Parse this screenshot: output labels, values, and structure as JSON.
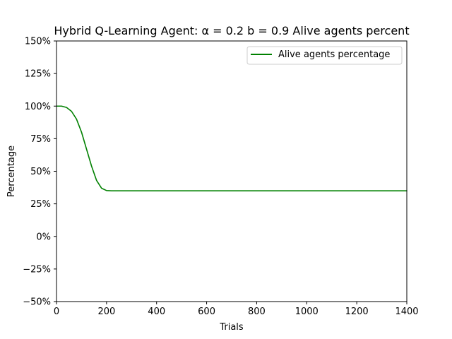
{
  "chart_data": {
    "type": "line",
    "title": "Hybrid Q-Learning Agent: α = 0.2 b = 0.9 Alive agents percent",
    "xlabel": "Trials",
    "ylabel": "Percentage",
    "xlim": [
      0,
      1400
    ],
    "ylim": [
      -50,
      150
    ],
    "x_ticks": [
      0,
      200,
      400,
      600,
      800,
      1000,
      1200,
      1400
    ],
    "x_tick_labels": [
      "0",
      "200",
      "400",
      "600",
      "800",
      "1000",
      "1200",
      "1400"
    ],
    "y_ticks": [
      -50,
      -25,
      0,
      25,
      50,
      75,
      100,
      125,
      150
    ],
    "y_tick_labels": [
      "−50%",
      "−25%",
      "0%",
      "25%",
      "50%",
      "75%",
      "100%",
      "125%",
      "150%"
    ],
    "grid": false,
    "legend_position": "top-right",
    "series": [
      {
        "name": "Alive agents percentage",
        "color": "#008000",
        "x": [
          0,
          20,
          40,
          60,
          80,
          100,
          120,
          140,
          160,
          180,
          200,
          220,
          240,
          300,
          400,
          600,
          800,
          1000,
          1200,
          1400
        ],
        "y": [
          100,
          100,
          99,
          96,
          90,
          80,
          67,
          54,
          43,
          37,
          35.2,
          35,
          35,
          35,
          35,
          35,
          35,
          35,
          35,
          35
        ]
      }
    ]
  }
}
